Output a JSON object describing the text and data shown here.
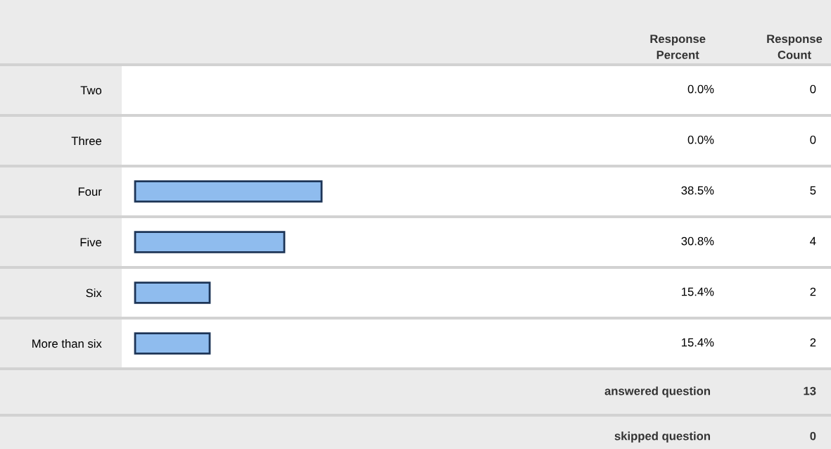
{
  "chart_data": {
    "type": "bar",
    "orientation": "horizontal",
    "categories": [
      "Two",
      "Three",
      "Four",
      "Five",
      "Six",
      "More than six"
    ],
    "values": [
      0.0,
      0.0,
      38.5,
      30.8,
      15.4,
      15.4
    ],
    "value_labels": [
      "0.0%",
      "0.0%",
      "38.5%",
      "30.8%",
      "15.4%",
      "15.4%"
    ],
    "color": "#8fbcee",
    "grid": false,
    "legend": false,
    "annotations": [
      "Response Percent",
      "Response Count",
      "0",
      "0",
      "5",
      "4",
      "2",
      "2",
      "answered question",
      "13",
      "skipped question",
      "0"
    ]
  }
}
